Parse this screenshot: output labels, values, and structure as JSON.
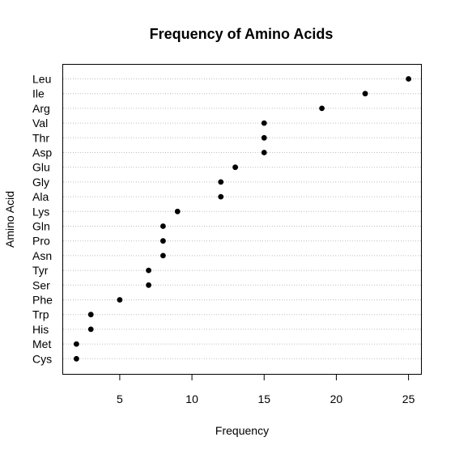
{
  "chart_data": {
    "type": "scatter",
    "subtype": "dotchart",
    "title": "Frequency of Amino Acids",
    "xlabel": "Frequency",
    "ylabel": "Amino Acid",
    "xlim": [
      1.08,
      25.92
    ],
    "xticks": [
      5,
      10,
      15,
      20,
      25
    ],
    "categories": [
      "Leu",
      "Ile",
      "Arg",
      "Val",
      "Thr",
      "Asp",
      "Glu",
      "Gly",
      "Ala",
      "Lys",
      "Gln",
      "Pro",
      "Asn",
      "Tyr",
      "Ser",
      "Phe",
      "Trp",
      "His",
      "Met",
      "Cys"
    ],
    "values": [
      25,
      22,
      19,
      15,
      15,
      15,
      13,
      12,
      12,
      9,
      8,
      8,
      8,
      7,
      7,
      5,
      3,
      3,
      2,
      2
    ],
    "grid": "dotted horizontal lines per category",
    "point_color": "#000000",
    "grid_color": "#bebebe"
  }
}
